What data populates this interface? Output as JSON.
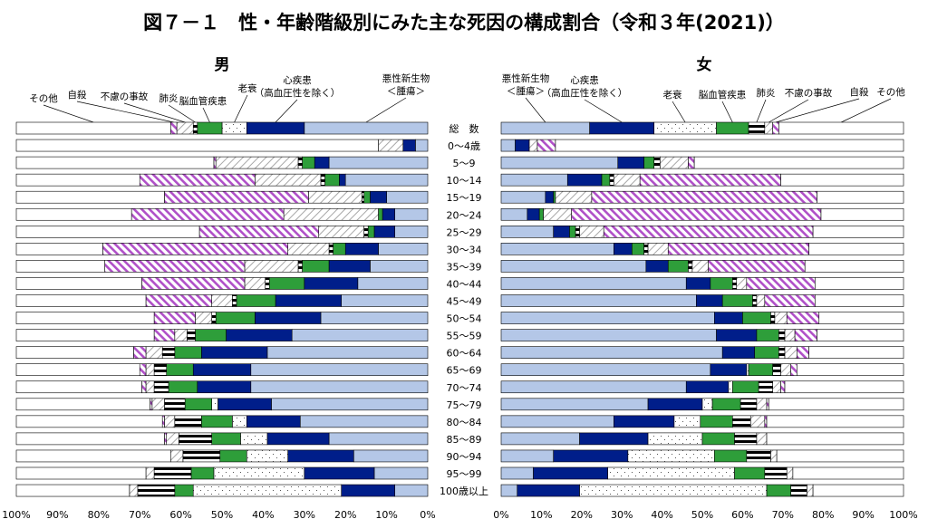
{
  "chart_data": {
    "type": "bar",
    "title": "図７－１　性・年齢階級別にみた主な死因の構成割合（令和３年(2021)）",
    "layout": "back-to-back horizontal 100% stacked bars",
    "xlim": [
      0,
      100
    ],
    "tick_labels": [
      "0%",
      "10%",
      "20%",
      "30%",
      "40%",
      "50%",
      "60%",
      "70%",
      "80%",
      "90%",
      "100%"
    ],
    "categories": [
      "総　数",
      "0～4歳",
      "5～9",
      "10～14",
      "15～19",
      "20～24",
      "25～29",
      "30～34",
      "35～39",
      "40～44",
      "45～49",
      "50～54",
      "55～59",
      "60～64",
      "65～69",
      "70～74",
      "75～79",
      "80～84",
      "85～89",
      "90～94",
      "95～99",
      "100歳以上"
    ],
    "series_names": [
      "悪性新生物",
      "心疾患",
      "老衰",
      "脳血管疾患",
      "肺炎",
      "不慮の事故",
      "自殺",
      "その他"
    ],
    "series_colors": {
      "悪性新生物": "#b4c7e7",
      "心疾患": "#001e8a",
      "老衰": "#ffffff",
      "脳血管疾患": "#2e9e3a",
      "肺炎": "#ffffff",
      "不慮の事故": "#ffffff",
      "自殺": "#ffffff",
      "その他": "#ffffff"
    },
    "panels": [
      {
        "name": "男",
        "direction": "right-to-left",
        "legend_labels": [
          "その他",
          "自殺",
          "不慮の事故",
          "肺炎",
          "脳血管疾患",
          "老衰",
          "心疾患\n（高血圧性を除く）",
          "悪性新生物\n＜腫瘍＞"
        ],
        "values": [
          [
            30,
            14,
            6,
            6,
            1,
            4,
            1.5,
            37.5
          ],
          [
            3,
            3,
            0,
            0,
            0,
            6,
            0,
            88
          ],
          [
            24,
            3.5,
            0,
            3,
            1,
            20,
            0.5,
            48
          ],
          [
            20,
            1.5,
            0,
            3.5,
            1,
            16,
            28,
            30
          ],
          [
            10,
            4,
            0,
            1.5,
            0.5,
            13,
            35,
            36
          ],
          [
            8,
            3,
            0,
            1,
            0,
            23,
            37,
            28
          ],
          [
            8,
            5,
            0,
            1.5,
            1,
            11,
            29,
            44.5
          ],
          [
            12,
            8,
            0,
            3,
            1,
            10,
            45,
            21
          ],
          [
            14,
            10,
            0,
            6.5,
            1,
            13,
            34,
            21.5
          ],
          [
            17,
            13,
            0,
            8.5,
            1,
            5,
            25,
            30.5
          ],
          [
            21,
            16,
            0,
            9.5,
            1,
            5,
            16,
            31.5
          ],
          [
            26,
            16,
            0,
            9.5,
            1,
            4,
            10,
            33.5
          ],
          [
            33,
            16,
            0,
            7.5,
            2,
            3,
            5,
            33.5
          ],
          [
            39,
            16,
            0,
            6.5,
            3,
            4,
            3,
            28.5
          ],
          [
            43,
            14,
            0,
            6.5,
            3,
            2,
            1.5,
            30
          ],
          [
            43,
            13,
            0,
            7,
            3.5,
            2,
            1,
            30.5
          ],
          [
            38,
            13,
            1.5,
            6.5,
            5,
            3,
            0.5,
            32.5
          ],
          [
            31,
            13,
            3.5,
            7.5,
            6.5,
            2.5,
            0.5,
            35.5
          ],
          [
            24,
            15,
            6.5,
            7,
            8,
            3,
            0.5,
            36
          ],
          [
            18,
            16,
            10,
            6.5,
            9,
            3,
            0,
            37.5
          ],
          [
            13,
            17,
            22,
            5.5,
            9,
            2,
            0,
            31.5
          ],
          [
            8,
            13,
            36,
            4.5,
            9,
            2,
            0,
            27.5
          ]
        ]
      },
      {
        "name": "女",
        "direction": "left-to-right",
        "legend_labels": [
          "悪性新生物\n＜腫瘍＞",
          "心疾患\n（高血圧性を除く）",
          "老衰",
          "脳血管疾患",
          "肺炎",
          "不慮の事故",
          "自殺",
          "その他"
        ],
        "values": [
          [
            22,
            16,
            15.5,
            8,
            4,
            2,
            1.5,
            31
          ],
          [
            3.5,
            3.5,
            0,
            0,
            0,
            2,
            4.5,
            86.5
          ],
          [
            29,
            6.5,
            0,
            2.5,
            1.5,
            7,
            1.5,
            52
          ],
          [
            16.5,
            8.5,
            0,
            2,
            1,
            6.5,
            35,
            30.5
          ],
          [
            11,
            2,
            0,
            0.5,
            0,
            9,
            56,
            21.5
          ],
          [
            6.5,
            3,
            0,
            1,
            0,
            7,
            62,
            20.5
          ],
          [
            13,
            4,
            0,
            1.5,
            1,
            6,
            52,
            22.5
          ],
          [
            28,
            4.5,
            0,
            3,
            1,
            5,
            35,
            23.5
          ],
          [
            36,
            5.5,
            0,
            5,
            1,
            4,
            24,
            24.5
          ],
          [
            46,
            6,
            0,
            5.5,
            1,
            2.5,
            17,
            22
          ],
          [
            48.5,
            6.5,
            0,
            7.5,
            1,
            2,
            12.5,
            22
          ],
          [
            53,
            7,
            0,
            7,
            1,
            3,
            8,
            21
          ],
          [
            53.5,
            10,
            0,
            5.5,
            1.5,
            2.5,
            5.5,
            21.5
          ],
          [
            55,
            8,
            0,
            6,
            1.5,
            3,
            3,
            23.5
          ],
          [
            52,
            9,
            0.5,
            6,
            2,
            2.5,
            1.5,
            26.5
          ],
          [
            46,
            10.5,
            1,
            6.5,
            3.5,
            2,
            1,
            29.5
          ],
          [
            36.5,
            13.5,
            2.5,
            7,
            4,
            2.5,
            0.5,
            33.5
          ],
          [
            28,
            15,
            6.5,
            8,
            4.5,
            3.5,
            0.5,
            34
          ],
          [
            19.5,
            17,
            13.5,
            8,
            5.5,
            2.5,
            0,
            34
          ],
          [
            13,
            18.5,
            21.5,
            8,
            6,
            1.5,
            0,
            31.5
          ],
          [
            8,
            18.5,
            31.5,
            7.5,
            5.5,
            1.5,
            0,
            27.5
          ],
          [
            4,
            15.5,
            46.5,
            6,
            4,
            1.5,
            0,
            22.5
          ]
        ]
      }
    ]
  }
}
